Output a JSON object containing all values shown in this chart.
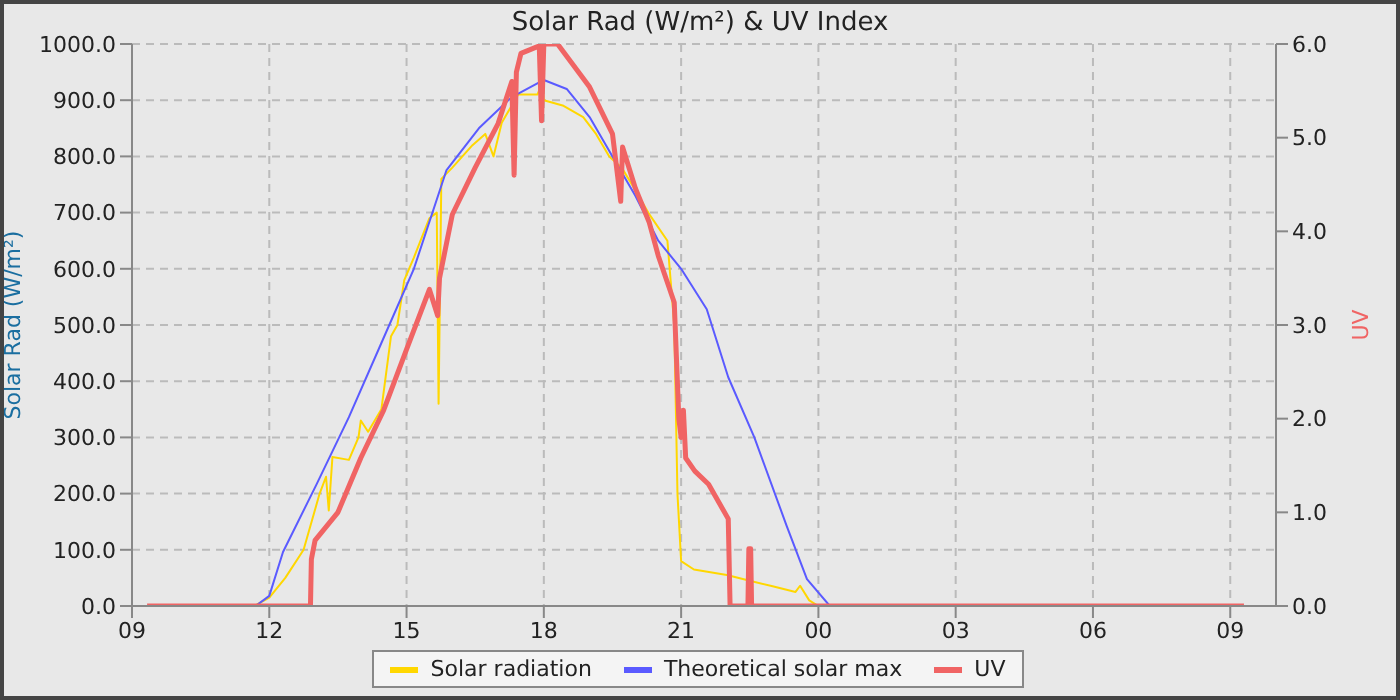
{
  "chart_data": {
    "type": "line",
    "title": "Solar Rad (W/m²) &  UV Index",
    "ylabel": "Solar Rad (W/m²)",
    "y2label": "UV",
    "xlim": [
      9,
      34
    ],
    "xticks": [
      {
        "value": 9,
        "label": "09"
      },
      {
        "value": 12,
        "label": "12"
      },
      {
        "value": 15,
        "label": "15"
      },
      {
        "value": 18,
        "label": "18"
      },
      {
        "value": 21,
        "label": "21"
      },
      {
        "value": 24,
        "label": "00"
      },
      {
        "value": 27,
        "label": "03"
      },
      {
        "value": 30,
        "label": "06"
      },
      {
        "value": 33,
        "label": "09"
      }
    ],
    "ylim": [
      0,
      1000
    ],
    "yticks": [
      {
        "value": 0,
        "label": "0.0"
      },
      {
        "value": 100,
        "label": "100.0"
      },
      {
        "value": 200,
        "label": "200.0"
      },
      {
        "value": 300,
        "label": "300.0"
      },
      {
        "value": 400,
        "label": "400.0"
      },
      {
        "value": 500,
        "label": "500.0"
      },
      {
        "value": 600,
        "label": "600.0"
      },
      {
        "value": 700,
        "label": "700.0"
      },
      {
        "value": 800,
        "label": "800.0"
      },
      {
        "value": 900,
        "label": "900.0"
      },
      {
        "value": 1000,
        "label": "1000.0"
      }
    ],
    "y2lim": [
      0,
      6
    ],
    "y2ticks": [
      {
        "value": 0,
        "label": "0.0"
      },
      {
        "value": 1,
        "label": "1.0"
      },
      {
        "value": 2,
        "label": "2.0"
      },
      {
        "value": 3,
        "label": "3.0"
      },
      {
        "value": 4,
        "label": "4.0"
      },
      {
        "value": 5,
        "label": "5.0"
      },
      {
        "value": 6,
        "label": "6.0"
      }
    ],
    "grid": true,
    "legend": "bottom",
    "marker": "none",
    "line_style": "solid",
    "series": [
      {
        "name": "Solar radiation",
        "color": "#ffd700",
        "x": [
          9.33,
          11.67,
          12.0,
          12.35,
          12.75,
          13.1,
          13.24,
          13.3,
          13.38,
          13.74,
          13.95,
          14.0,
          14.16,
          14.45,
          14.66,
          14.8,
          14.95,
          15.16,
          15.5,
          15.66,
          15.7,
          15.76,
          16.0,
          16.44,
          16.72,
          16.9,
          17.08,
          17.44,
          17.86,
          17.96,
          18.0,
          18.43,
          18.86,
          19.14,
          19.43,
          19.7,
          20.0,
          20.28,
          20.7,
          20.85,
          20.92,
          21.0,
          21.28,
          22.0,
          22.5,
          23.0,
          23.5,
          23.6,
          23.8,
          24.0,
          33.3
        ],
        "values": [
          0,
          0,
          15,
          50,
          100,
          200,
          230,
          170,
          265,
          260,
          300,
          330,
          310,
          350,
          480,
          500,
          580,
          620,
          690,
          700,
          360,
          760,
          780,
          820,
          840,
          800,
          860,
          910,
          910,
          930,
          900,
          890,
          870,
          840,
          800,
          780,
          740,
          700,
          650,
          500,
          200,
          80,
          65,
          55,
          45,
          35,
          25,
          36,
          10,
          0,
          0
        ]
      },
      {
        "name": "Theoretical solar max",
        "color": "#5a5aff",
        "x": [
          11.7,
          12.0,
          12.3,
          13.03,
          13.74,
          14.45,
          15.16,
          15.87,
          16.58,
          17.29,
          18.0,
          18.5,
          19.0,
          19.5,
          20.0,
          20.5,
          21.0,
          21.56,
          22.03,
          22.6,
          23.3,
          23.75,
          24.25
        ],
        "values": [
          0,
          18,
          96,
          216,
          336,
          468,
          600,
          775,
          850,
          905,
          936,
          920,
          870,
          800,
          730,
          650,
          600,
          528,
          407,
          300,
          144,
          48,
          0
        ]
      },
      {
        "name": "UV",
        "color": "#f06464",
        "axis": "y2",
        "x": [
          9.33,
          12.9,
          12.92,
          13.0,
          13.5,
          14.0,
          14.5,
          15.0,
          15.5,
          15.68,
          15.72,
          16.0,
          16.5,
          17.0,
          17.3,
          17.35,
          17.4,
          17.5,
          17.9,
          17.95,
          18.0,
          18.3,
          18.5,
          19.0,
          19.5,
          19.68,
          19.72,
          20.0,
          20.3,
          20.5,
          20.85,
          20.95,
          21.0,
          21.05,
          21.1,
          21.3,
          21.6,
          22.03,
          22.07,
          22.46,
          22.48,
          22.52,
          22.54,
          33.3
        ],
        "values": [
          0,
          0,
          0.5,
          0.7,
          1.0,
          1.58,
          2.09,
          2.74,
          3.38,
          3.1,
          3.5,
          4.18,
          4.68,
          5.15,
          5.6,
          4.6,
          5.7,
          5.9,
          5.98,
          5.18,
          6.0,
          6.0,
          5.87,
          5.54,
          5.04,
          4.32,
          4.9,
          4.46,
          4.1,
          3.74,
          3.24,
          2.0,
          1.8,
          2.09,
          1.58,
          1.44,
          1.3,
          0.93,
          0,
          0,
          0.61,
          0.61,
          0,
          0
        ]
      }
    ]
  }
}
